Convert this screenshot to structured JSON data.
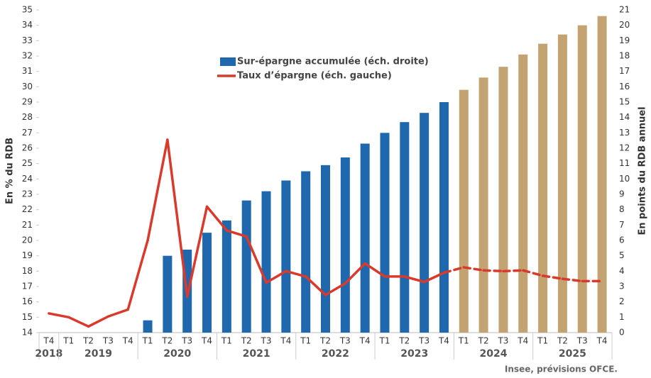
{
  "chart_data": {
    "type": "bar_line",
    "y_label": "En % du RDB",
    "y2_label": "En points du RDB annuel",
    "source": "Insee, prévisions OFCE.",
    "categories": [
      "T4",
      "T1",
      "T2",
      "T3",
      "T4",
      "T1",
      "T2",
      "T3",
      "T4",
      "T1",
      "T2",
      "T3",
      "T4",
      "T1",
      "T2",
      "T3",
      "T4",
      "T1",
      "T2",
      "T3",
      "T4",
      "T1",
      "T2",
      "T3",
      "T4",
      "T1",
      "T2",
      "T3",
      "T4"
    ],
    "groups": [
      {
        "label": "2018",
        "count": 1
      },
      {
        "label": "2019",
        "count": 4
      },
      {
        "label": "2020",
        "count": 4
      },
      {
        "label": "2021",
        "count": 4
      },
      {
        "label": "2022",
        "count": 4
      },
      {
        "label": "2023",
        "count": 4
      },
      {
        "label": "2024",
        "count": 4
      },
      {
        "label": "2025",
        "count": 4
      }
    ],
    "ylim": [
      14,
      35
    ],
    "yticks": [
      14,
      15,
      16,
      17,
      18,
      19,
      20,
      21,
      22,
      23,
      24,
      25,
      26,
      27,
      28,
      29,
      30,
      31,
      32,
      33,
      34,
      35
    ],
    "y2lim": [
      0,
      21
    ],
    "y2ticks": [
      0,
      1,
      2,
      3,
      4,
      5,
      6,
      7,
      8,
      9,
      10,
      11,
      12,
      13,
      14,
      15,
      16,
      17,
      18,
      19,
      20,
      21
    ],
    "series": [
      {
        "name": "Sur-épargne accumulée (éch. droite)",
        "kind": "bar",
        "axis": "y2",
        "color": "#1f68ad",
        "colors": [
          "#1f68ad",
          "#1f68ad",
          "#1f68ad",
          "#1f68ad",
          "#1f68ad",
          "#1f68ad",
          "#1f68ad",
          "#1f68ad",
          "#1f68ad",
          "#1f68ad",
          "#1f68ad",
          "#1f68ad",
          "#1f68ad",
          "#1f68ad",
          "#1f68ad",
          "#1f68ad",
          "#1f68ad",
          "#1f68ad",
          "#1f68ad",
          "#1f68ad",
          "#1f68ad",
          "#c4a372",
          "#c4a372",
          "#c4a372",
          "#c4a372",
          "#c4a372",
          "#c4a372",
          "#c4a372",
          "#c4a372"
        ],
        "values": [
          null,
          null,
          null,
          null,
          null,
          0.8,
          5.0,
          5.4,
          6.5,
          7.3,
          8.6,
          9.2,
          9.9,
          10.5,
          10.9,
          11.4,
          12.3,
          13.0,
          13.7,
          14.3,
          15.0,
          15.8,
          16.6,
          17.3,
          18.1,
          18.8,
          19.4,
          20.0,
          20.6
        ]
      },
      {
        "name": "Taux d’épargne (éch. gauche)",
        "kind": "line",
        "color": "#d93a2b",
        "dashed": [
          false,
          false,
          false,
          false,
          false,
          false,
          false,
          false,
          false,
          false,
          false,
          false,
          false,
          false,
          false,
          false,
          false,
          false,
          false,
          false,
          false,
          true,
          true,
          true,
          true,
          true,
          true,
          true,
          true
        ],
        "values": [
          15.25,
          15.0,
          14.4,
          15.05,
          15.5,
          20.0,
          26.55,
          16.35,
          22.2,
          20.65,
          20.25,
          17.25,
          18.0,
          17.65,
          16.45,
          17.2,
          18.5,
          17.65,
          17.65,
          17.3,
          17.9,
          18.25,
          18.05,
          18.0,
          18.05,
          17.7,
          17.5,
          17.35,
          17.35
        ]
      }
    ]
  }
}
